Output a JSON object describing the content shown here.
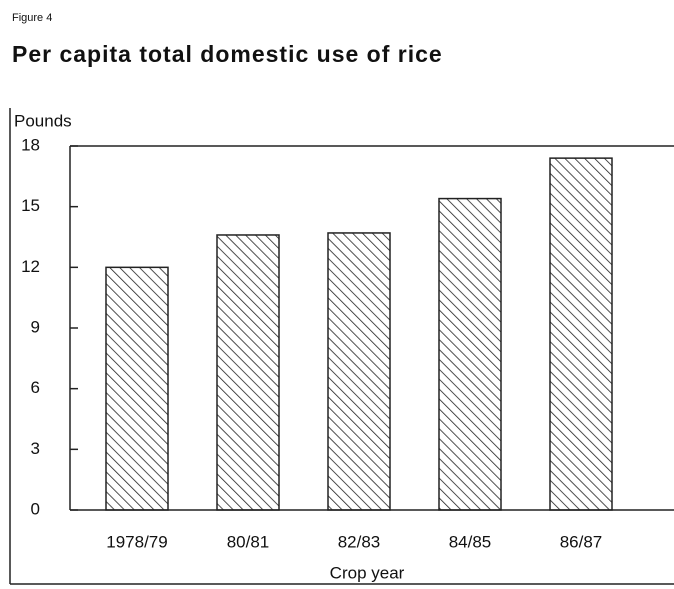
{
  "chart_data": {
    "type": "bar",
    "figure_label": "Figure 4",
    "title": "Per capita total domestic use of rice",
    "y_label": "Pounds",
    "x_label": "Crop year",
    "categories": [
      "1978/79",
      "80/81",
      "82/83",
      "84/85",
      "86/87"
    ],
    "values": [
      12.0,
      13.6,
      13.7,
      15.4,
      17.4
    ],
    "color": "#222222",
    "ylim": [
      0,
      18
    ],
    "yticks": [
      0,
      3,
      6,
      9,
      12,
      15,
      18
    ]
  }
}
